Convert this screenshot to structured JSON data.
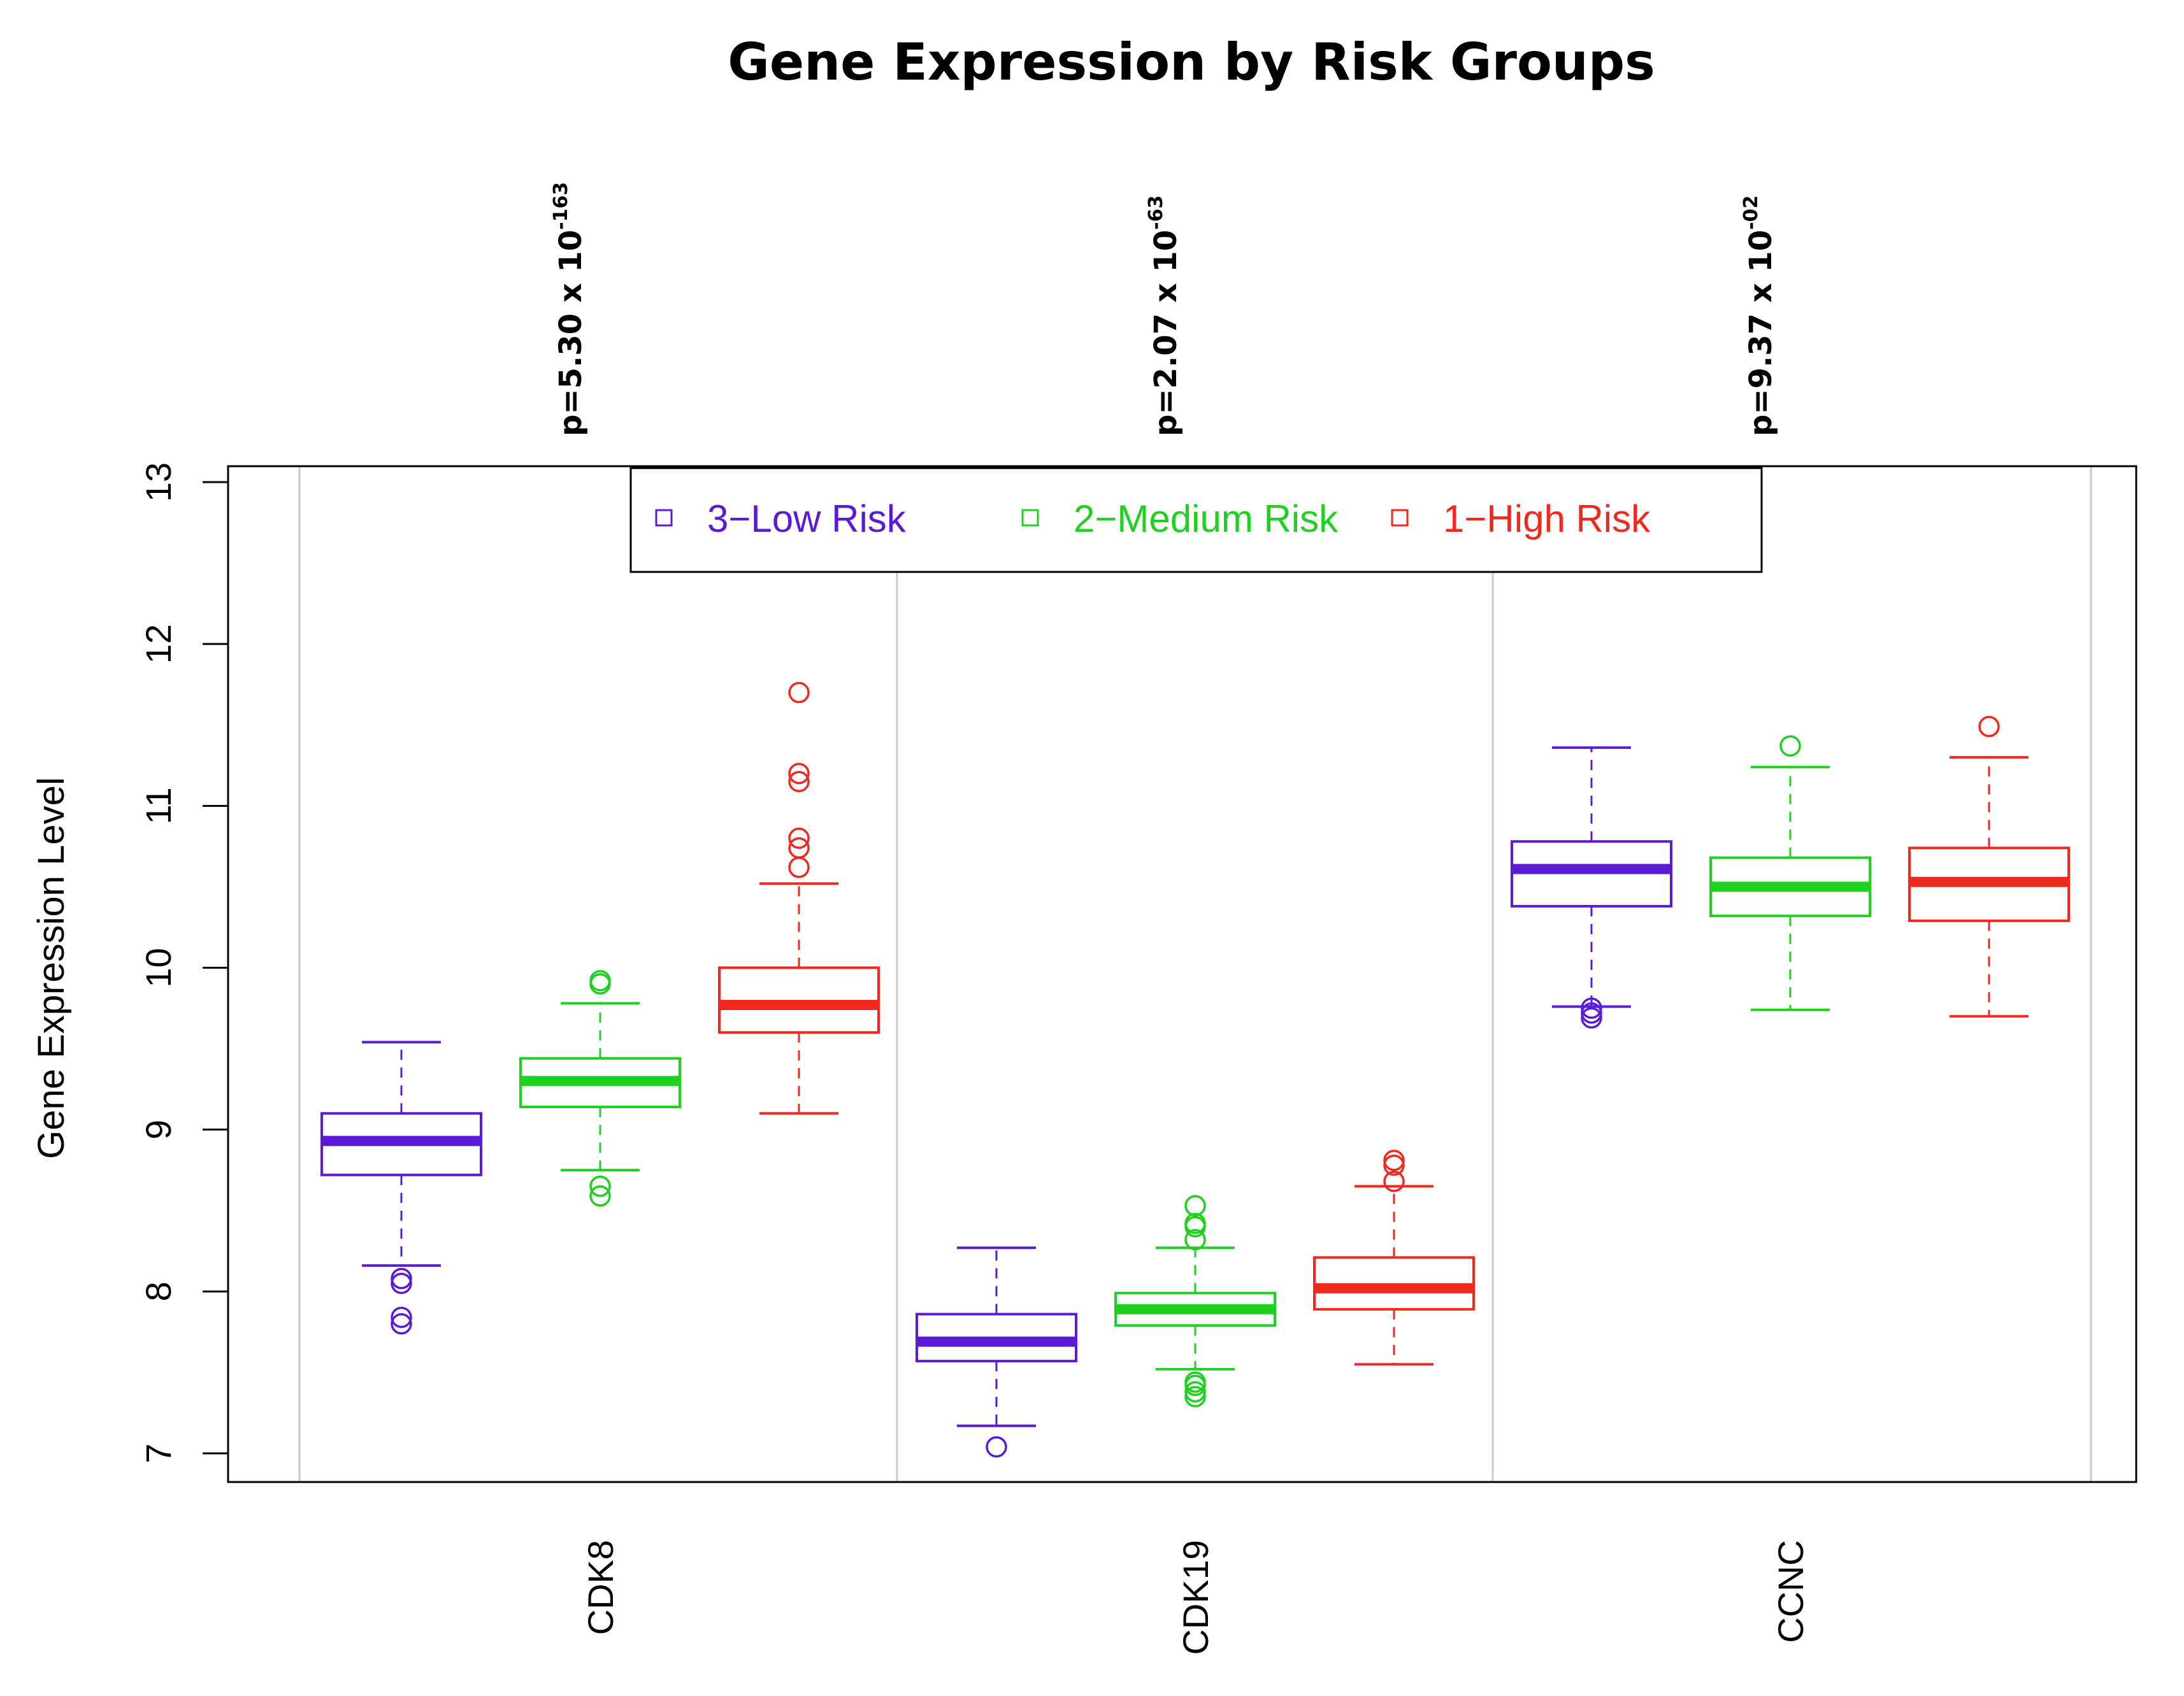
{
  "chart_data": {
    "type": "boxplot",
    "title": "Gene Expression by Risk Groups",
    "ylabel": "Gene Expression Level",
    "xlabel": "",
    "ylim": [
      7,
      13
    ],
    "yticks": [
      7,
      8,
      9,
      10,
      11,
      12,
      13
    ],
    "categories": [
      "CDK8",
      "CDK19",
      "CCNC"
    ],
    "pvalues": [
      {
        "category": "CDK8",
        "mantissa": "p=5.30 x 10",
        "exponent": "-163"
      },
      {
        "category": "CDK19",
        "mantissa": "p=2.07 x 10",
        "exponent": "-63"
      },
      {
        "category": "CCNC",
        "mantissa": "p=9.37 x 10",
        "exponent": "-02"
      }
    ],
    "legend": {
      "position": "top",
      "entries": [
        {
          "label": "3−Low Risk",
          "color": "#5b1bd6"
        },
        {
          "label": "2−Medium Risk",
          "color": "#1ed11e"
        },
        {
          "label": "1−High Risk",
          "color": "#f0281e"
        }
      ]
    },
    "series": [
      {
        "name": "3−Low Risk",
        "color": "#5b1bd6",
        "boxes": [
          {
            "category": "CDK8",
            "min": 8.16,
            "q1": 8.72,
            "median": 8.93,
            "q3": 9.1,
            "max": 9.54,
            "outliers": [
              8.08,
              8.05,
              7.84,
              7.8
            ]
          },
          {
            "category": "CDK19",
            "min": 7.17,
            "q1": 7.57,
            "median": 7.69,
            "q3": 7.86,
            "max": 8.27,
            "outliers": [
              7.04
            ]
          },
          {
            "category": "CCNC",
            "min": 9.76,
            "q1": 10.38,
            "median": 10.61,
            "q3": 10.78,
            "max": 11.36,
            "outliers": [
              9.75,
              9.72,
              9.69
            ]
          }
        ]
      },
      {
        "name": "2−Medium Risk",
        "color": "#1ed11e",
        "boxes": [
          {
            "category": "CDK8",
            "min": 8.75,
            "q1": 9.14,
            "median": 9.3,
            "q3": 9.44,
            "max": 9.78,
            "outliers": [
              9.92,
              9.9,
              8.65,
              8.59
            ]
          },
          {
            "category": "CDK19",
            "min": 7.52,
            "q1": 7.79,
            "median": 7.89,
            "q3": 7.99,
            "max": 8.27,
            "outliers": [
              8.53,
              8.42,
              8.4,
              8.32,
              7.44,
              7.42,
              7.38,
              7.35
            ]
          },
          {
            "category": "CCNC",
            "min": 9.74,
            "q1": 10.32,
            "median": 10.5,
            "q3": 10.68,
            "max": 11.24,
            "outliers": [
              11.37
            ]
          }
        ]
      },
      {
        "name": "1−High Risk",
        "color": "#f0281e",
        "boxes": [
          {
            "category": "CDK8",
            "min": 9.1,
            "q1": 9.6,
            "median": 9.77,
            "q3": 10.0,
            "max": 10.52,
            "outliers": [
              10.62,
              10.74,
              10.8,
              11.15,
              11.2,
              11.7
            ]
          },
          {
            "category": "CDK19",
            "min": 7.55,
            "q1": 7.89,
            "median": 8.02,
            "q3": 8.21,
            "max": 8.65,
            "outliers": [
              8.68,
              8.78,
              8.81
            ]
          },
          {
            "category": "CCNC",
            "min": 9.7,
            "q1": 10.29,
            "median": 10.53,
            "q3": 10.74,
            "max": 11.3,
            "outliers": [
              11.49
            ]
          }
        ]
      }
    ]
  }
}
